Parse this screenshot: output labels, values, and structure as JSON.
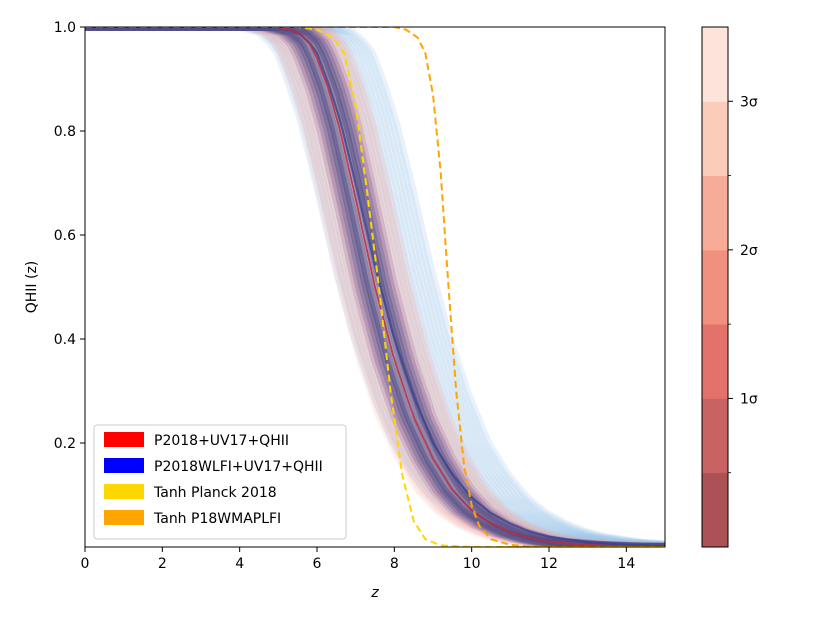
{
  "chart_data": {
    "type": "line",
    "title": "",
    "xlabel": "z",
    "ylabel": "QHII (z)",
    "xlim": [
      0,
      15
    ],
    "ylim": [
      0,
      1.0
    ],
    "x_ticks": [
      0,
      2,
      4,
      6,
      8,
      10,
      12,
      14
    ],
    "y_ticks": [
      0.2,
      0.4,
      0.6,
      0.8,
      1.0
    ],
    "x_tick_labels": [
      "0",
      "2",
      "4",
      "6",
      "8",
      "10",
      "12",
      "14"
    ],
    "y_tick_labels": [
      "0.2",
      "0.4",
      "0.6",
      "0.8",
      "1.0"
    ],
    "legend_position": "lower-left",
    "series": [
      {
        "name": "P2018+UV17+QHII",
        "color": "#ff0000",
        "style": "posterior-band",
        "median": {
          "x": [
            0,
            5,
            5.5,
            5.8,
            6,
            6.3,
            6.6,
            7,
            7.5,
            8,
            8.5,
            9,
            9.5,
            10,
            10.5,
            11,
            11.5,
            12,
            13,
            14,
            15
          ],
          "y": [
            1.0,
            1.0,
            0.99,
            0.97,
            0.94,
            0.88,
            0.8,
            0.67,
            0.5,
            0.36,
            0.25,
            0.17,
            0.11,
            0.07,
            0.045,
            0.028,
            0.017,
            0.01,
            0.004,
            0.001,
            0.0
          ]
        },
        "spread_z": 0.5
      },
      {
        "name": "P2018WLFI+UV17+QHII",
        "color": "#0000ff",
        "style": "posterior-band",
        "median": {
          "x": [
            0,
            5,
            5.5,
            5.8,
            6,
            6.3,
            6.6,
            7,
            7.5,
            8,
            8.5,
            9,
            9.5,
            10,
            10.5,
            11,
            11.5,
            12,
            13,
            14,
            15
          ],
          "y": [
            1.0,
            1.0,
            0.99,
            0.97,
            0.95,
            0.89,
            0.82,
            0.7,
            0.54,
            0.4,
            0.29,
            0.2,
            0.14,
            0.095,
            0.065,
            0.045,
            0.03,
            0.02,
            0.009,
            0.004,
            0.002
          ]
        },
        "spread_z": 0.9
      },
      {
        "name": "Tanh Planck 2018",
        "color": "#ffd700",
        "style": "dashed",
        "x": [
          0,
          5.5,
          6,
          6.4,
          6.7,
          7.0,
          7.3,
          7.6,
          7.9,
          8.2,
          8.5,
          8.8,
          9.2,
          10,
          15
        ],
        "y": [
          1.0,
          1.0,
          0.995,
          0.98,
          0.95,
          0.85,
          0.68,
          0.5,
          0.3,
          0.14,
          0.05,
          0.015,
          0.003,
          0.0,
          0.0
        ]
      },
      {
        "name": "Tanh P18WMAPLFI",
        "color": "#ffa500",
        "style": "dashed",
        "x": [
          0,
          8,
          8.3,
          8.6,
          8.8,
          9.0,
          9.2,
          9.4,
          9.6,
          9.8,
          10.0,
          10.2,
          10.5,
          11,
          11.5,
          12,
          15
        ],
        "y": [
          1.0,
          1.0,
          0.995,
          0.98,
          0.95,
          0.87,
          0.72,
          0.5,
          0.3,
          0.16,
          0.08,
          0.04,
          0.015,
          0.004,
          0.001,
          0.0,
          0.0
        ]
      }
    ],
    "colorbar": {
      "levels": 7,
      "colors": [
        "#a8494b",
        "#c65a5a",
        "#e06a62",
        "#f08a78",
        "#f7a891",
        "#fbc9b6",
        "#fde3d8"
      ],
      "tick_labels": [
        "1σ",
        "2σ",
        "3σ"
      ],
      "tick_levels": [
        1,
        2,
        3
      ],
      "range": [
        0,
        3.5
      ]
    }
  }
}
